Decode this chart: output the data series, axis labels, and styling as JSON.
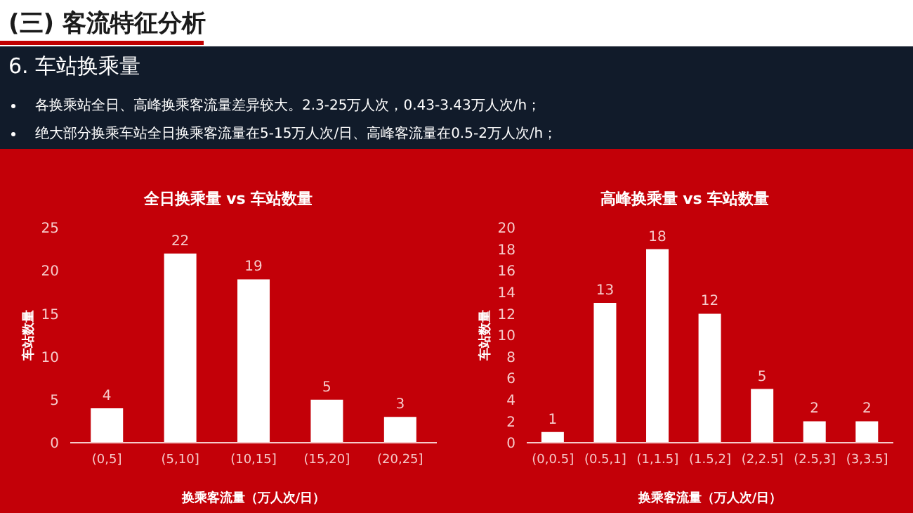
{
  "chart_data": [
    {
      "type": "other",
      "title": "(三) 客流特征分析",
      "subtitle": "6. 车站换乘量",
      "annotations": [
        "各换乘站全日、高峰换乘客流量差异较大。2.3-25万人次，0.43-3.43万人次/h；",
        "绝大部分换乘车站全日换乘客流量在5-15万人次/日、高峰客流量在0.5-2万人次/h；"
      ]
    },
    {
      "type": "bar",
      "title": "全日换乘量 vs 车站数量",
      "xlabel": "换乘客流量（万人次/日）",
      "ylabel": "车站数量",
      "categories": [
        "(0,5]",
        "(5,10]",
        "(10,15]",
        "(15,20]",
        "(20,25]"
      ],
      "values": [
        4,
        22,
        19,
        5,
        3
      ],
      "color": "#ffffff",
      "ylim": [
        0,
        25
      ],
      "yticks": [
        0,
        5,
        10,
        15,
        20,
        25
      ],
      "data_labels": true
    },
    {
      "type": "bar",
      "title": "高峰换乘量 vs 车站数量",
      "xlabel": "换乘客流量（万人次/日）",
      "ylabel": "车站数量",
      "categories": [
        "(0,0.5]",
        "(0.5,1]",
        "(1,1.5]",
        "(1.5,2]",
        "(2,2.5]",
        "(2.5,3]",
        "(3,3.5]"
      ],
      "values": [
        1,
        13,
        18,
        12,
        5,
        2,
        2
      ],
      "color": "#ffffff",
      "ylim": [
        0,
        20
      ],
      "yticks": [
        0,
        2,
        4,
        6,
        8,
        10,
        12,
        14,
        16,
        18,
        20
      ],
      "data_labels": true
    }
  ]
}
